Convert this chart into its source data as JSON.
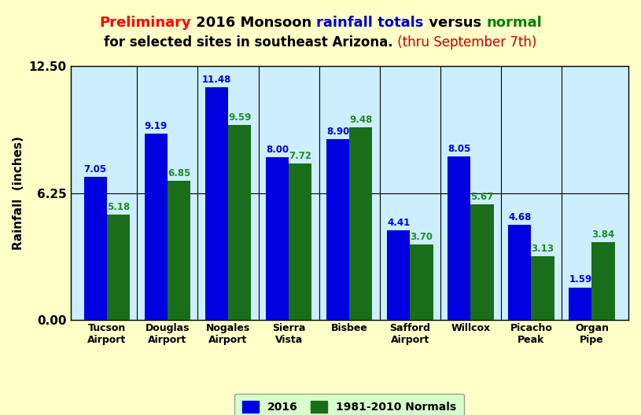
{
  "categories": [
    "Tucson\nAirport",
    "Douglas\nAirport",
    "Nogales\nAirport",
    "Sierra\nVista",
    "Bisbee",
    "Safford\nAirport",
    "Willcox",
    "Picacho\nPeak",
    "Organ\nPipe"
  ],
  "values_2016": [
    7.05,
    9.19,
    11.48,
    8.0,
    8.9,
    4.41,
    8.05,
    4.68,
    1.59
  ],
  "values_normal": [
    5.18,
    6.85,
    9.59,
    7.72,
    9.48,
    3.7,
    5.67,
    3.13,
    3.84
  ],
  "bar_color_2016": "#0000e0",
  "bar_color_normal": "#1a6e1a",
  "label_color_2016": "#0000e0",
  "label_color_normal": "#228B22",
  "background_outer": "#ffffc8",
  "background_plot": "#cceeff",
  "grid_color": "#000000",
  "ylim": [
    0,
    12.5
  ],
  "yticks": [
    0.0,
    6.25,
    12.5
  ],
  "ylabel": "Rainfall  (inches)",
  "title_line1_parts": [
    {
      "text": "Preliminary",
      "color": "#ff0000",
      "bold": true
    },
    {
      "text": " 2016 Monsoon ",
      "color": "#000000",
      "bold": true
    },
    {
      "text": "rainfall totals",
      "color": "#0000cc",
      "bold": true
    },
    {
      "text": " versus ",
      "color": "#000000",
      "bold": true
    },
    {
      "text": "normal",
      "color": "#008000",
      "bold": true
    }
  ],
  "title_line2_parts": [
    {
      "text": "for selected sites in southeast Arizona.",
      "color": "#000000",
      "bold": true
    },
    {
      "text": " (thru September 7th)",
      "color": "#cc0000",
      "bold": false
    }
  ],
  "legend_label_2016": "2016",
  "legend_label_normal": "1981-2010 Normals",
  "legend_bg": "#ccffcc",
  "bar_width": 0.38,
  "title_fontsize1": 13,
  "title_fontsize2": 12,
  "label_fontsize": 8.5,
  "ylabel_fontsize": 11,
  "ytick_fontsize": 11,
  "xtick_fontsize": 9
}
